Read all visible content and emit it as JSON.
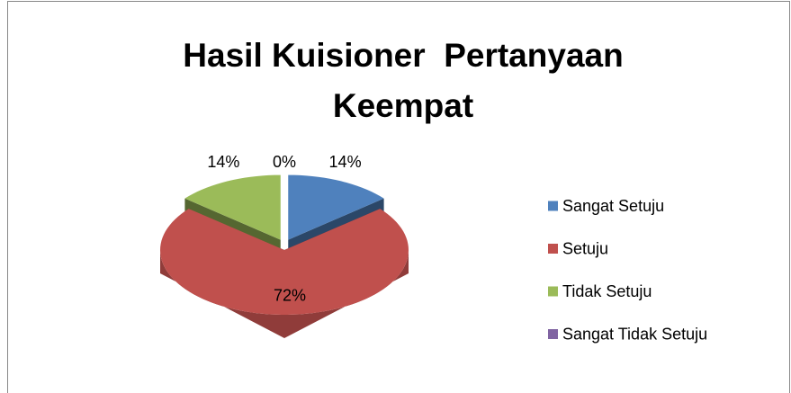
{
  "chart_data": {
    "type": "pie",
    "title": "Hasil Kuisioner  Pertanyaan Keempat",
    "categories": [
      "Sangat Setuju",
      "Setuju",
      "Tidak Setuju",
      "Sangat Tidak Setuju"
    ],
    "values": [
      14,
      72,
      14,
      0
    ],
    "value_labels": [
      "14%",
      "72%",
      "14%",
      "0%"
    ],
    "colors": [
      "#4f81bd",
      "#c0504d",
      "#9bbb59",
      "#8064a2"
    ],
    "legend": "right"
  }
}
